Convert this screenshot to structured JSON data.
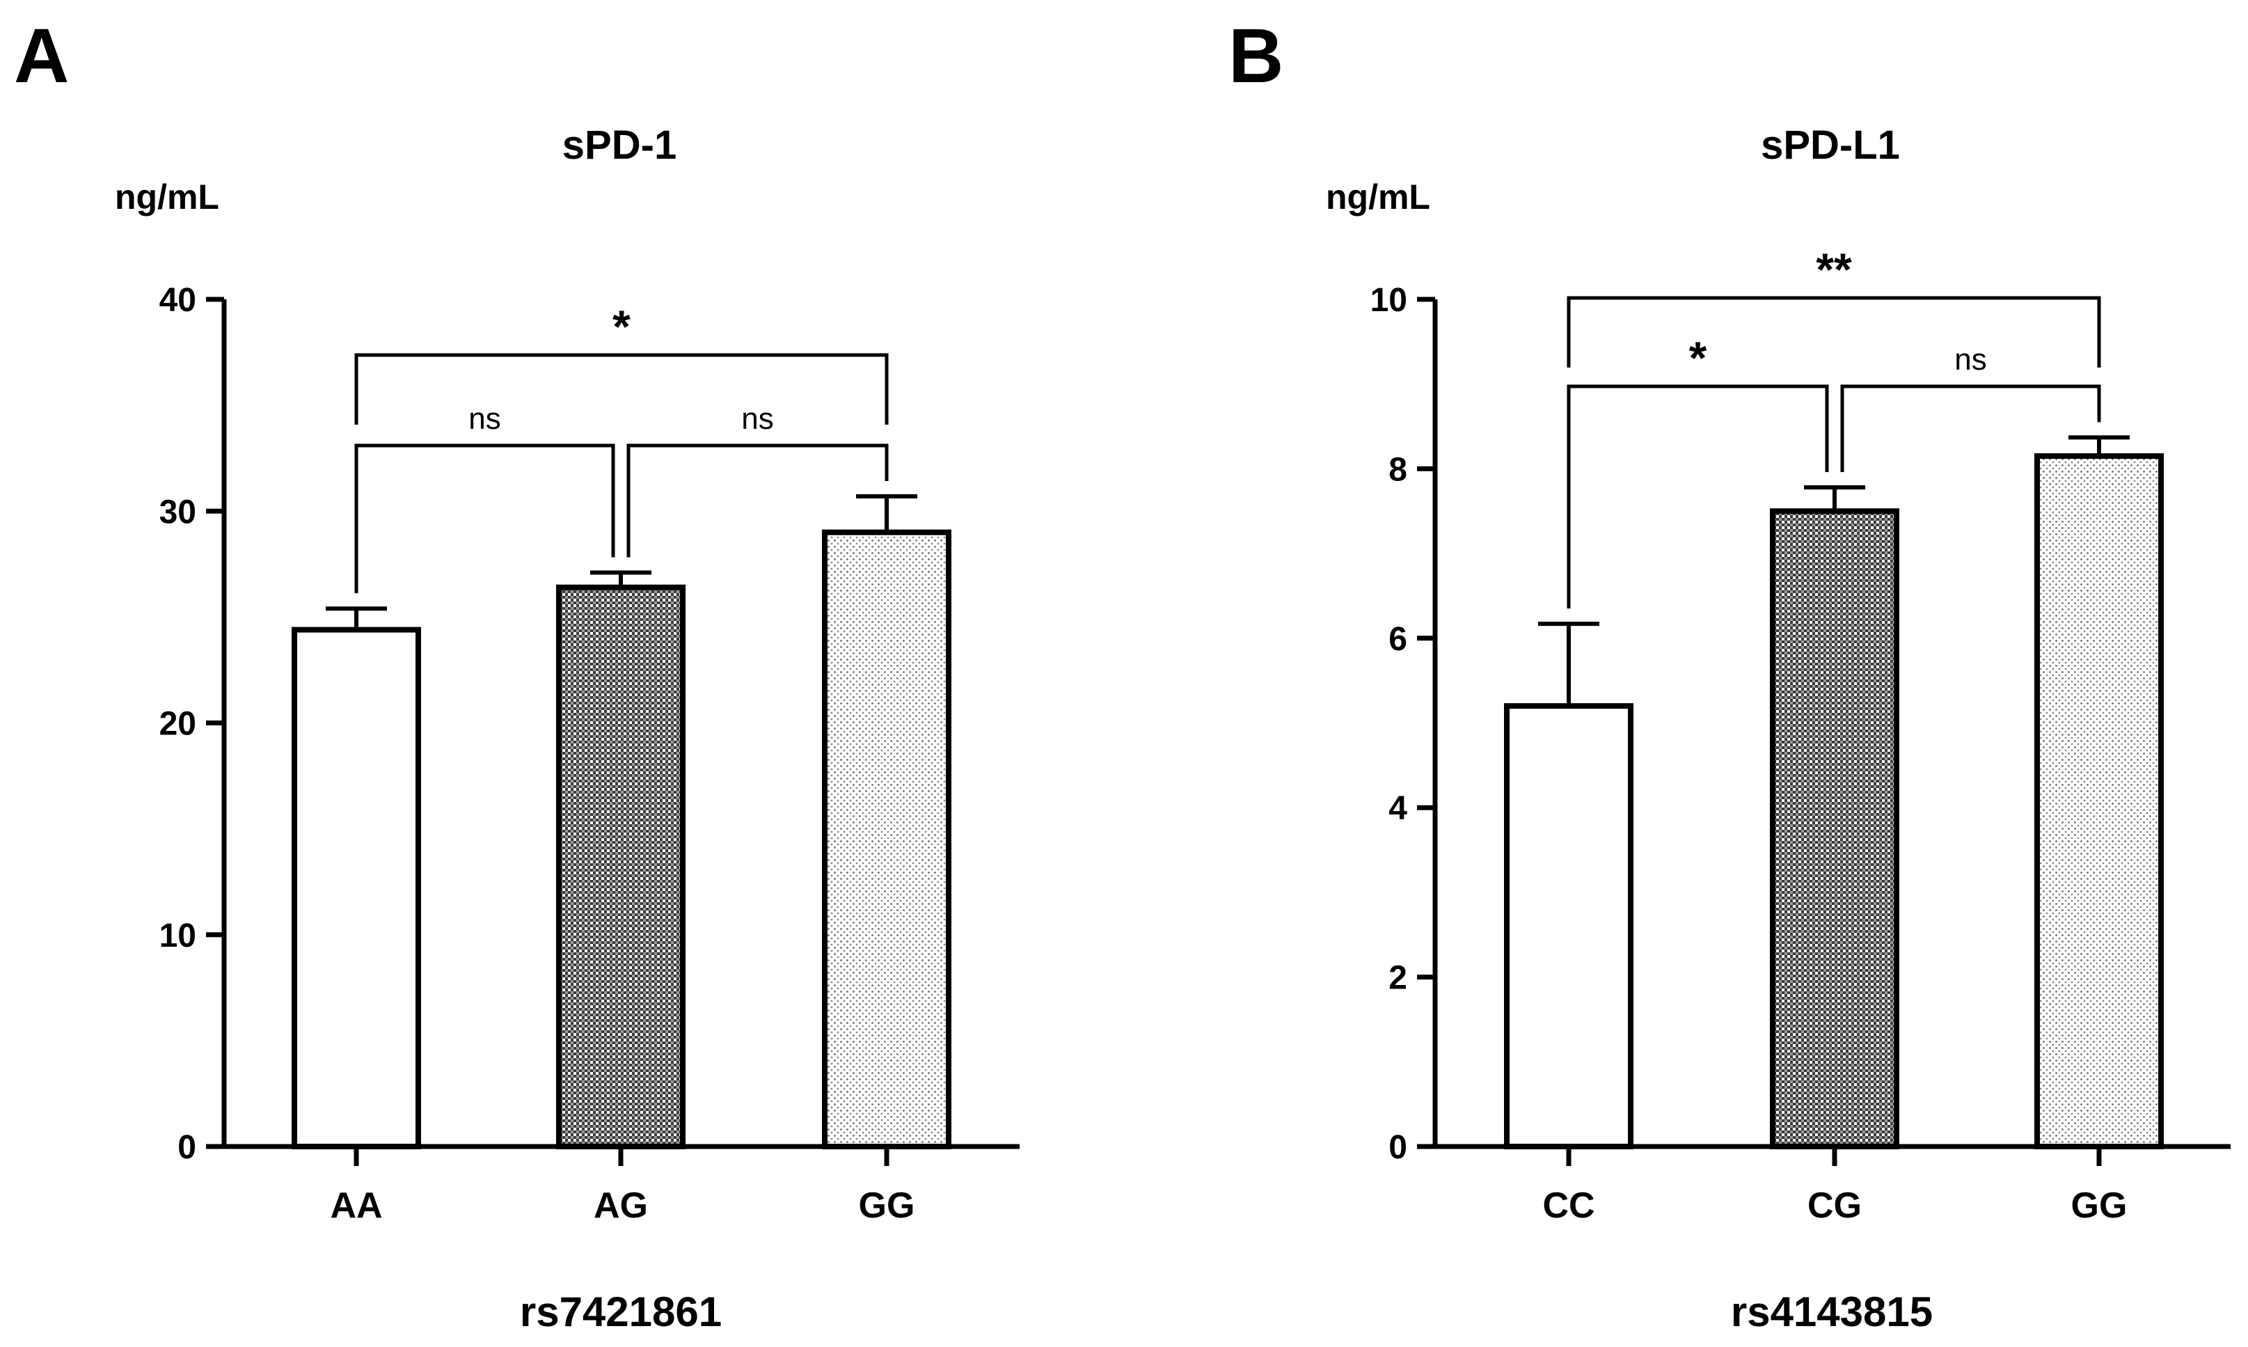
{
  "chart_data": [
    {
      "type": "bar",
      "panel_label": "A",
      "title": "sPD-1",
      "ylabel": "ng/mL",
      "xlabel": "rs7421861",
      "categories": [
        "AA",
        "AG",
        "GG"
      ],
      "values": [
        24.4,
        26.4,
        29.0
      ],
      "errors": [
        1.0,
        0.7,
        1.7
      ],
      "ylim": [
        0,
        40
      ],
      "yticks": [
        0,
        10,
        20,
        30,
        40
      ],
      "ytick_labels": [
        "0",
        "10",
        "20",
        "30",
        "40"
      ],
      "patterns": [
        "white",
        "dark-check",
        "light-dots"
      ],
      "comparisons": [
        {
          "from": 0,
          "to": 1,
          "label": "ns"
        },
        {
          "from": 1,
          "to": 2,
          "label": "ns"
        },
        {
          "from": 0,
          "to": 2,
          "label": "*"
        }
      ]
    },
    {
      "type": "bar",
      "panel_label": "B",
      "title": "sPD-L1",
      "ylabel": "ng/mL",
      "xlabel": "rs4143815",
      "categories": [
        "CC",
        "CG",
        "GG"
      ],
      "values": [
        5.2,
        7.5,
        8.15
      ],
      "errors": [
        0.97,
        0.28,
        0.22
      ],
      "ylim": [
        0,
        10
      ],
      "yticks": [
        0,
        2,
        4,
        6,
        8,
        10
      ],
      "ytick_labels": [
        "0",
        "2",
        "4",
        "6",
        "8",
        "10"
      ],
      "patterns": [
        "white",
        "dark-check",
        "light-dots"
      ],
      "comparisons": [
        {
          "from": 0,
          "to": 1,
          "label": "*"
        },
        {
          "from": 1,
          "to": 2,
          "label": "ns"
        },
        {
          "from": 0,
          "to": 2,
          "label": "**"
        }
      ]
    }
  ]
}
